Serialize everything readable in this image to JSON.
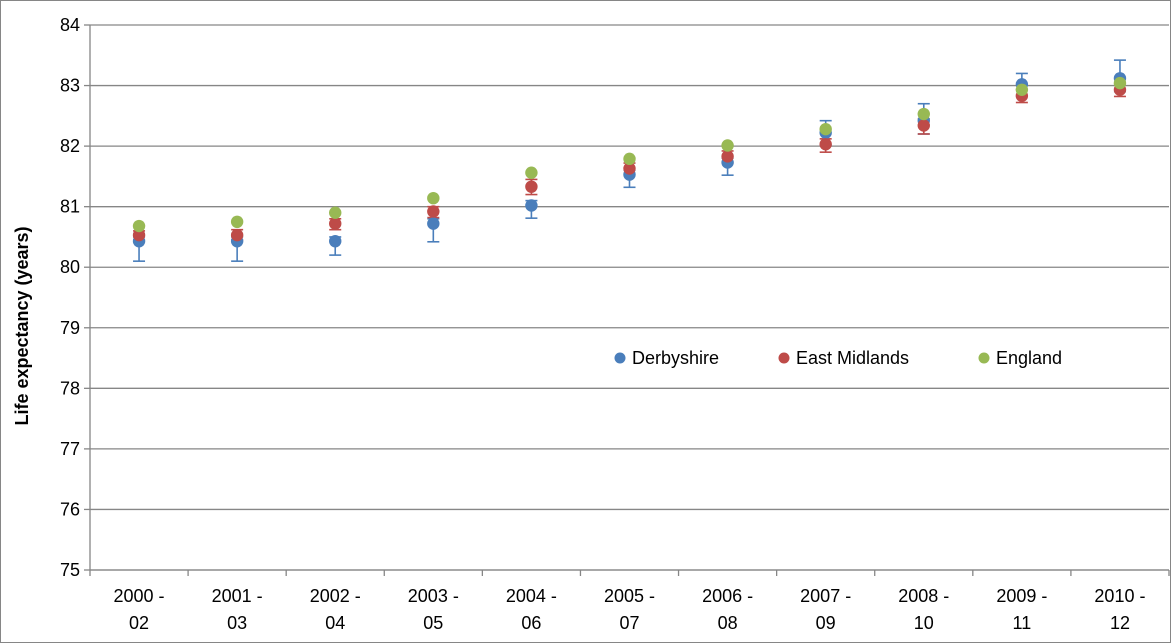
{
  "chart_data": {
    "type": "scatter",
    "title": "",
    "xlabel": "",
    "ylabel": "Life expectancy (years)",
    "ylim": [
      75,
      84
    ],
    "y_ticks": [
      "75",
      "76",
      "77",
      "78",
      "79",
      "80",
      "81",
      "82",
      "83",
      "84"
    ],
    "grid": "horizontal",
    "legend_position": "center-right",
    "categories": [
      [
        "2000 -",
        "02"
      ],
      [
        "2001 -",
        "03"
      ],
      [
        "2002 -",
        "04"
      ],
      [
        "2003 -",
        "05"
      ],
      [
        "2004 -",
        "06"
      ],
      [
        "2005 -",
        "07"
      ],
      [
        "2006 -",
        "08"
      ],
      [
        "2007 -",
        "09"
      ],
      [
        "2008 -",
        "10"
      ],
      [
        "2009 -",
        "11"
      ],
      [
        "2010 -",
        "12"
      ]
    ],
    "series": [
      {
        "name": "Derbyshire",
        "color": "#4a7ebb",
        "values": [
          80.43,
          80.43,
          80.43,
          80.72,
          81.02,
          81.53,
          81.73,
          82.22,
          82.42,
          83.02,
          83.12
        ],
        "error_bars": [
          [
            80.1,
            80.5
          ],
          [
            80.1,
            80.5
          ],
          [
            80.2,
            80.5
          ],
          [
            80.42,
            80.8
          ],
          [
            80.81,
            81.1
          ],
          [
            81.32,
            81.6
          ],
          [
            81.52,
            81.8
          ],
          [
            82.02,
            82.42
          ],
          [
            82.2,
            82.7
          ],
          [
            82.82,
            83.2
          ],
          [
            82.9,
            83.42
          ]
        ]
      },
      {
        "name": "East Midlands",
        "color": "#be4b48",
        "values": [
          80.53,
          80.53,
          80.72,
          80.92,
          81.33,
          81.63,
          81.83,
          82.03,
          82.34,
          82.83,
          82.93
        ],
        "error_bars": [
          [
            80.45,
            80.6
          ],
          [
            80.45,
            80.62
          ],
          [
            80.62,
            80.8
          ],
          [
            80.82,
            81.0
          ],
          [
            81.2,
            81.45
          ],
          [
            81.55,
            81.72
          ],
          [
            81.72,
            81.92
          ],
          [
            81.9,
            82.12
          ],
          [
            82.2,
            82.45
          ],
          [
            82.72,
            82.93
          ],
          [
            82.82,
            83.03
          ]
        ]
      },
      {
        "name": "England",
        "color": "#98b954",
        "values": [
          80.68,
          80.75,
          80.9,
          81.14,
          81.56,
          81.79,
          82.01,
          82.28,
          82.53,
          82.93,
          83.04
        ],
        "error_bars": null
      }
    ]
  }
}
